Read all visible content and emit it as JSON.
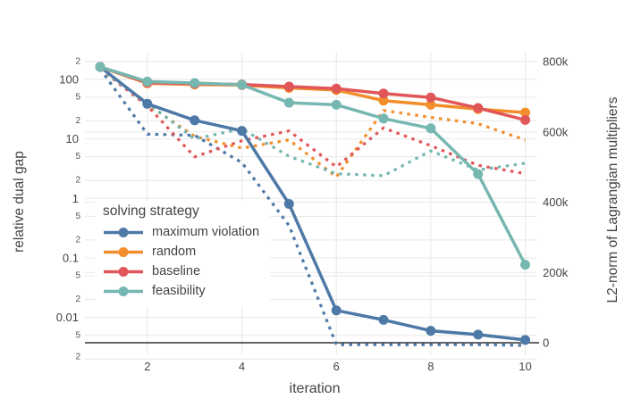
{
  "chart_data": {
    "type": "line",
    "x": [
      1,
      2,
      3,
      4,
      5,
      6,
      7,
      8,
      9,
      10
    ],
    "xlabel": "iteration",
    "x_ticks": [
      {
        "value": 2,
        "label": "2"
      },
      {
        "value": 4,
        "label": "4"
      },
      {
        "value": 6,
        "label": "6"
      },
      {
        "value": 8,
        "label": "8"
      },
      {
        "value": 10,
        "label": "10"
      }
    ],
    "grid": true,
    "left_axis": {
      "label": "relative dual gap",
      "scale": "log",
      "range": [
        0.0023,
        320
      ],
      "major_ticks": [
        {
          "value": 100,
          "label": "100"
        },
        {
          "value": 10,
          "label": "10"
        },
        {
          "value": 1,
          "label": "1"
        },
        {
          "value": 0.1,
          "label": "0.1"
        },
        {
          "value": 0.01,
          "label": "0.01"
        }
      ],
      "minor_ticks": [
        {
          "value": 200,
          "label": "2"
        },
        {
          "value": 50,
          "label": "5"
        },
        {
          "value": 20,
          "label": "2"
        },
        {
          "value": 5,
          "label": "5"
        },
        {
          "value": 2,
          "label": "2"
        },
        {
          "value": 0.5,
          "label": "5"
        },
        {
          "value": 0.2,
          "label": "2"
        },
        {
          "value": 0.05,
          "label": "5"
        },
        {
          "value": 0.02,
          "label": "2"
        },
        {
          "value": 0.005,
          "label": "5"
        },
        {
          "value": 0.002,
          "label": "2"
        }
      ]
    },
    "right_axis": {
      "label": "L2-norm of Lagrangian multipliers",
      "scale": "linear",
      "range": [
        -36000,
        835000
      ],
      "ticks": [
        {
          "value": 0,
          "label": "0"
        },
        {
          "value": 200000,
          "label": "200k"
        },
        {
          "value": 400000,
          "label": "400k"
        },
        {
          "value": 600000,
          "label": "600k"
        },
        {
          "value": 800000,
          "label": "800k"
        }
      ],
      "zeroline": true
    },
    "legend": {
      "title": "solving strategy",
      "position": "inside-left-bottom",
      "items": [
        {
          "name": "maximum violation",
          "color": "#4e79a7"
        },
        {
          "name": "random",
          "color": "#f28e2b"
        },
        {
          "name": "baseline",
          "color": "#e15759"
        },
        {
          "name": "feasibility",
          "color": "#76b7b2"
        }
      ]
    },
    "series": [
      {
        "name": "maximum violation",
        "metric": "relative dual gap",
        "axis": "left",
        "dash": true,
        "color": "#4e79a7",
        "values": [
          150,
          12,
          11.5,
          4,
          0.35,
          0.0035,
          0.0035,
          0.0035,
          0.0035,
          0.0034
        ]
      },
      {
        "name": "random",
        "metric": "relative dual gap",
        "axis": "left",
        "dash": true,
        "color": "#f28e2b",
        "values": [
          150,
          38,
          11,
          7,
          9.6,
          2.3,
          30,
          23,
          18,
          9.6
        ]
      },
      {
        "name": "baseline",
        "metric": "relative dual gap",
        "axis": "left",
        "dash": true,
        "color": "#e15759",
        "values": [
          150,
          36,
          5,
          9.3,
          13.6,
          3.4,
          15.3,
          7.7,
          3.6,
          2.6
        ]
      },
      {
        "name": "feasibility",
        "metric": "relative dual gap",
        "axis": "left",
        "dash": true,
        "color": "#76b7b2",
        "values": [
          150,
          40,
          10,
          14.7,
          5.1,
          2.6,
          2.4,
          6.3,
          3.0,
          3.9
        ]
      },
      {
        "name": "maximum violation",
        "metric": "L2-norm of Lagrangian multipliers",
        "axis": "right",
        "dash": false,
        "color": "#4e79a7",
        "values": [
          785000,
          680000,
          633000,
          603000,
          395000,
          92000,
          65000,
          34000,
          23000,
          8000
        ]
      },
      {
        "name": "random",
        "metric": "L2-norm of Lagrangian multipliers",
        "axis": "right",
        "dash": false,
        "color": "#f28e2b",
        "values": [
          785000,
          738000,
          735000,
          733000,
          725000,
          719000,
          689000,
          677000,
          665000,
          655000
        ]
      },
      {
        "name": "baseline",
        "metric": "L2-norm of Lagrangian multipliers",
        "axis": "right",
        "dash": false,
        "color": "#e15759",
        "values": [
          785000,
          740000,
          737000,
          735000,
          729000,
          723000,
          709000,
          698000,
          668000,
          634000
        ]
      },
      {
        "name": "feasibility",
        "metric": "L2-norm of Lagrangian multipliers",
        "axis": "right",
        "dash": false,
        "color": "#76b7b2",
        "values": [
          785000,
          743000,
          739000,
          734000,
          683000,
          677000,
          638000,
          610000,
          480000,
          222000
        ]
      }
    ],
    "colors": {
      "grid": "#e8e8e8",
      "zeroline": "#333333",
      "text": "#444444"
    }
  }
}
